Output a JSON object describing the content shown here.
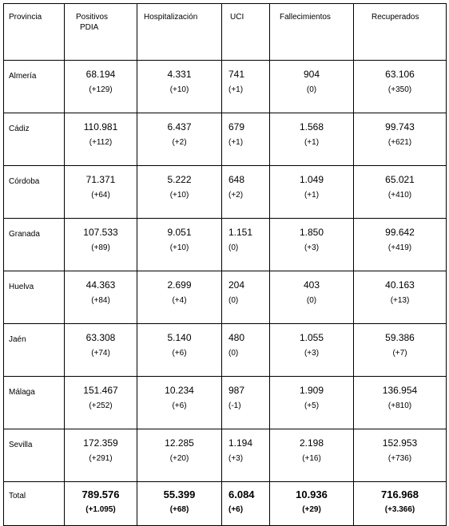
{
  "headers": {
    "provincia": "Provincia",
    "positivos_line1": "Positivos",
    "positivos_line2": "PDIA",
    "hospitalizacion": "Hospitalización",
    "uci": "UCI",
    "fallecimientos": "Fallecimientos",
    "recuperados": "Recuperados"
  },
  "rows": [
    {
      "provincia": "Almería",
      "positivos": "68.194",
      "positivos_delta": "(+129)",
      "hospitalizacion": "4.331",
      "hospitalizacion_delta": "(+10)",
      "uci": "741",
      "uci_delta": "(+1)",
      "fallecimientos": "904",
      "fallecimientos_delta": "(0)",
      "recuperados": "63.106",
      "recuperados_delta": "(+350)"
    },
    {
      "provincia": "Cádiz",
      "positivos": "110.981",
      "positivos_delta": "(+112)",
      "hospitalizacion": "6.437",
      "hospitalizacion_delta": "(+2)",
      "uci": "679",
      "uci_delta": "(+1)",
      "fallecimientos": "1.568",
      "fallecimientos_delta": "(+1)",
      "recuperados": "99.743",
      "recuperados_delta": "(+621)"
    },
    {
      "provincia": "Córdoba",
      "positivos": "71.371",
      "positivos_delta": "(+64)",
      "hospitalizacion": "5.222",
      "hospitalizacion_delta": "(+10)",
      "uci": "648",
      "uci_delta": "(+2)",
      "fallecimientos": "1.049",
      "fallecimientos_delta": "(+1)",
      "recuperados": "65.021",
      "recuperados_delta": "(+410)"
    },
    {
      "provincia": "Granada",
      "positivos": "107.533",
      "positivos_delta": "(+89)",
      "hospitalizacion": "9.051",
      "hospitalizacion_delta": "(+10)",
      "uci": "1.151",
      "uci_delta": "(0)",
      "fallecimientos": "1.850",
      "fallecimientos_delta": "(+3)",
      "recuperados": "99.642",
      "recuperados_delta": "(+419)"
    },
    {
      "provincia": "Huelva",
      "positivos": "44.363",
      "positivos_delta": "(+84)",
      "hospitalizacion": "2.699",
      "hospitalizacion_delta": "(+4)",
      "uci": "204",
      "uci_delta": "(0)",
      "fallecimientos": "403",
      "fallecimientos_delta": "(0)",
      "recuperados": "40.163",
      "recuperados_delta": "(+13)"
    },
    {
      "provincia": "Jaén",
      "positivos": "63.308",
      "positivos_delta": "(+74)",
      "hospitalizacion": "5.140",
      "hospitalizacion_delta": "(+6)",
      "uci": "480",
      "uci_delta": "(0)",
      "fallecimientos": "1.055",
      "fallecimientos_delta": "(+3)",
      "recuperados": "59.386",
      "recuperados_delta": "(+7)"
    },
    {
      "provincia": "Málaga",
      "positivos": "151.467",
      "positivos_delta": "(+252)",
      "hospitalizacion": "10.234",
      "hospitalizacion_delta": "(+6)",
      "uci": "987",
      "uci_delta": "(-1)",
      "fallecimientos": "1.909",
      "fallecimientos_delta": "(+5)",
      "recuperados": "136.954",
      "recuperados_delta": "(+810)"
    },
    {
      "provincia": "Sevilla",
      "positivos": "172.359",
      "positivos_delta": "(+291)",
      "hospitalizacion": "12.285",
      "hospitalizacion_delta": "(+20)",
      "uci": "1.194",
      "uci_delta": "(+3)",
      "fallecimientos": "2.198",
      "fallecimientos_delta": "(+16)",
      "recuperados": "152.953",
      "recuperados_delta": "(+736)"
    },
    {
      "provincia": "Total",
      "positivos": "789.576",
      "positivos_delta": "(+1.095)",
      "hospitalizacion": "55.399",
      "hospitalizacion_delta": "(+68)",
      "uci": "6.084",
      "uci_delta": "(+6)",
      "fallecimientos": "10.936",
      "fallecimientos_delta": "(+29)",
      "recuperados": "716.968",
      "recuperados_delta": "(+3.366)"
    }
  ]
}
